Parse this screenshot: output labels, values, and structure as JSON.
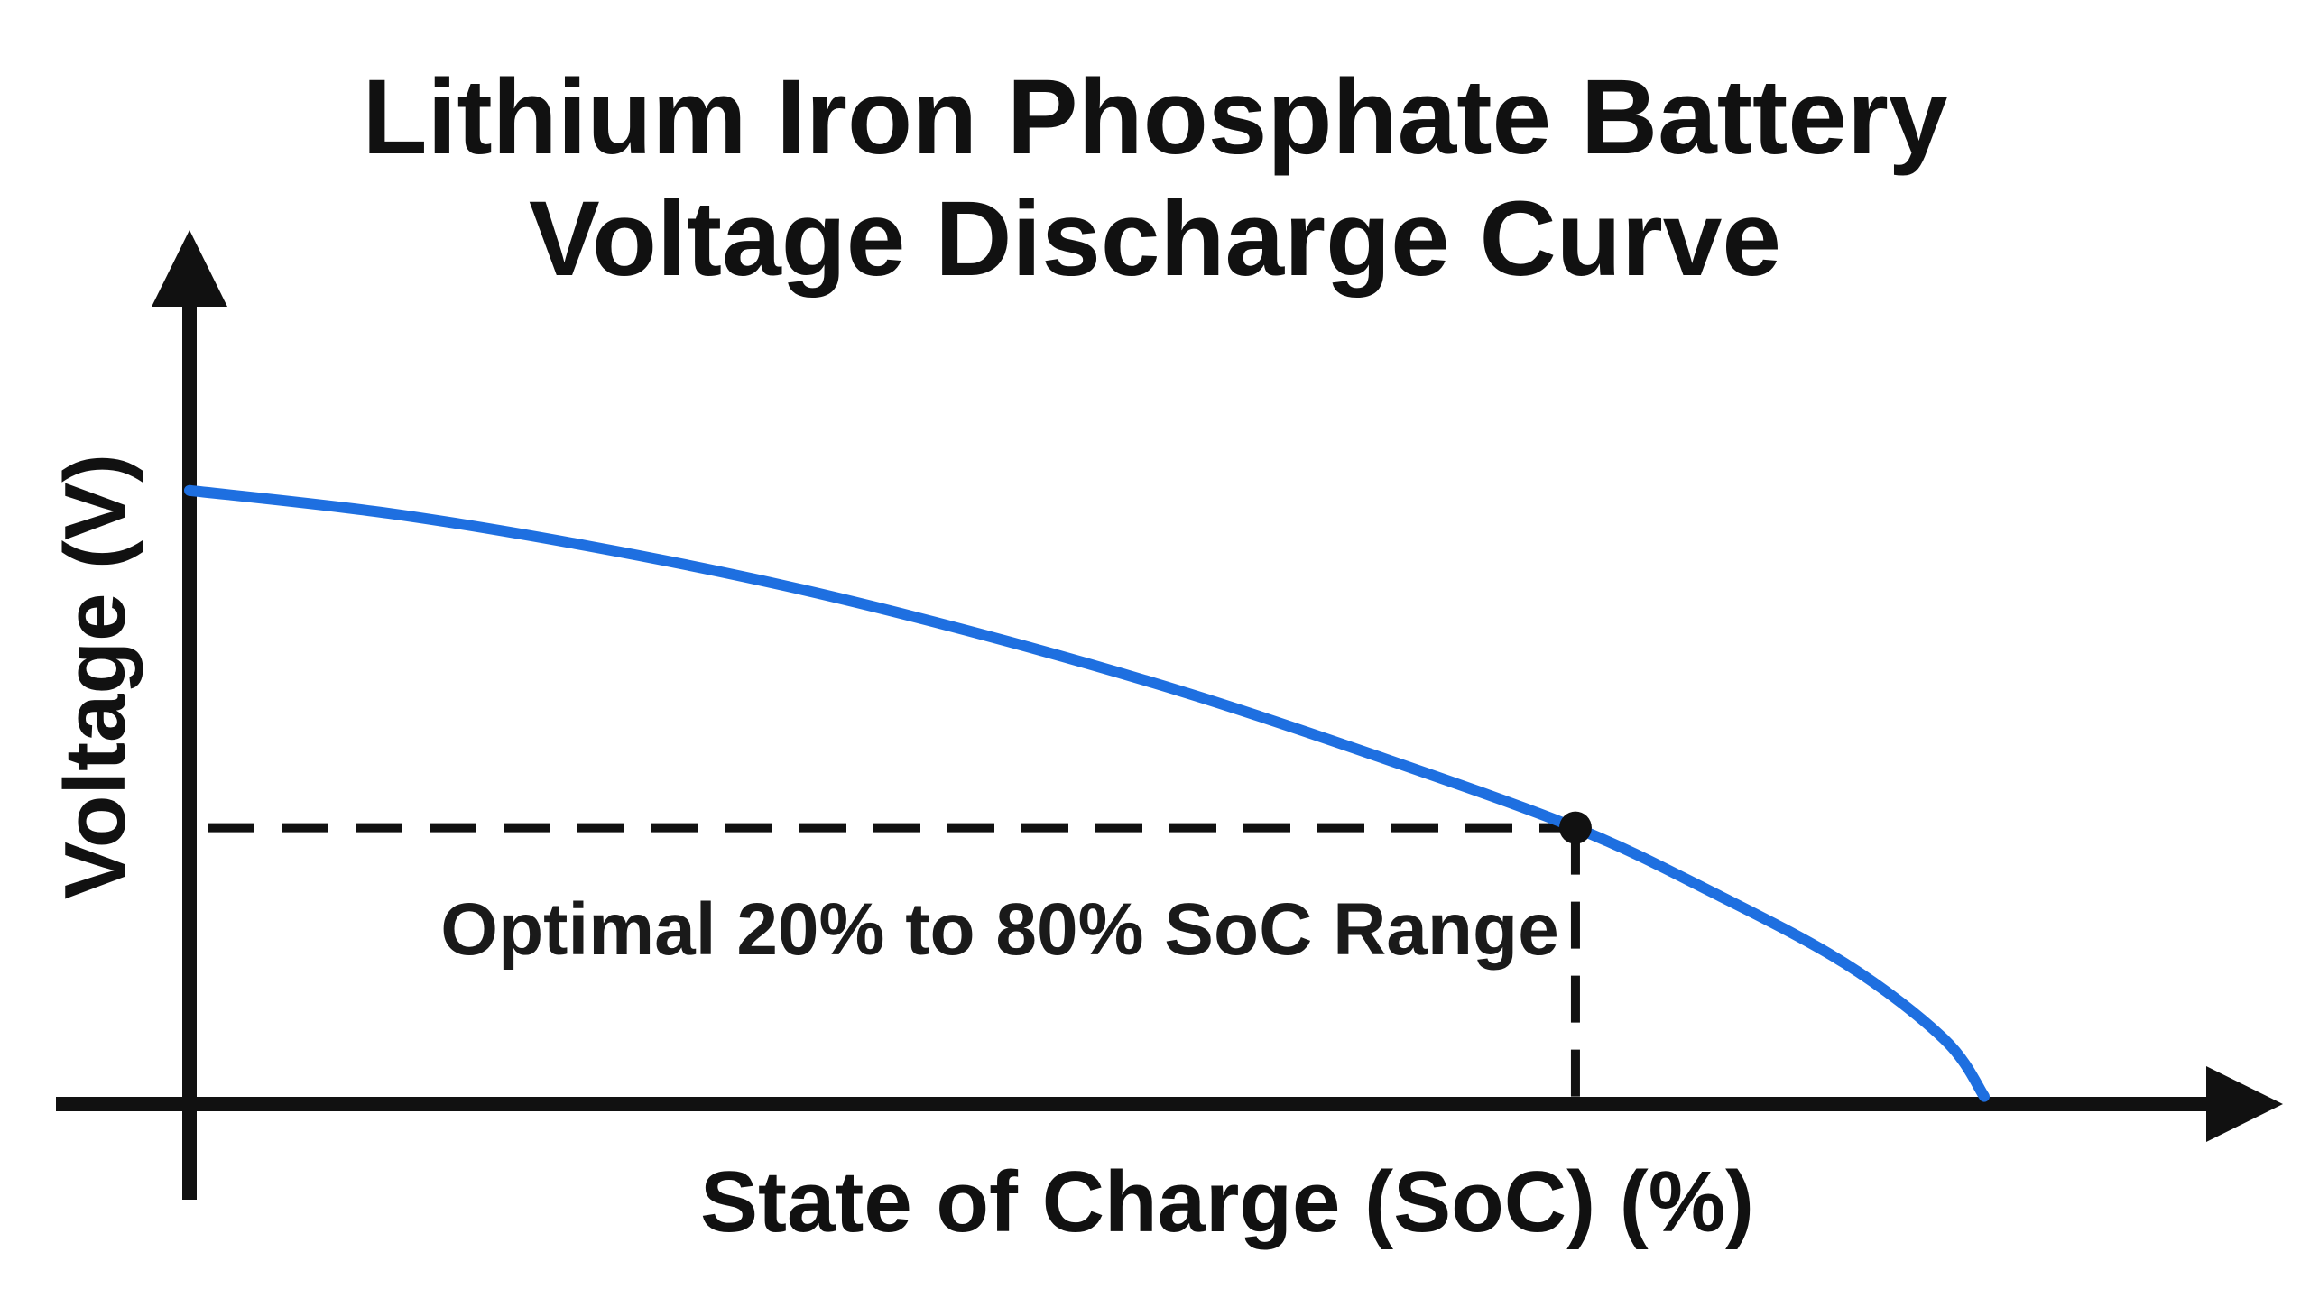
{
  "chart_data": {
    "type": "line",
    "title": [
      "Lithium Iron Phosphate Battery",
      "Voltage Discharge Curve"
    ],
    "xlabel": "State of Charge (SoC) (%)",
    "ylabel": "Voltage (V)",
    "annotation": "Optimal 20% to 80% SoC Range",
    "x_ticks_shown": false,
    "y_ticks_shown": false,
    "grid": false,
    "x_range": [
      0,
      1
    ],
    "y_range": [
      0,
      1
    ],
    "series": [
      {
        "color": "#1e6fe0",
        "points": [
          [
            0.0,
            0.806
          ],
          [
            0.1,
            0.776
          ],
          [
            0.2,
            0.733
          ],
          [
            0.3,
            0.68
          ],
          [
            0.4,
            0.615
          ],
          [
            0.5,
            0.54
          ],
          [
            0.6,
            0.453
          ],
          [
            0.695,
            0.363
          ],
          [
            0.76,
            0.283
          ],
          [
            0.83,
            0.185
          ],
          [
            0.88,
            0.085
          ],
          [
            0.9,
            0.01
          ]
        ]
      }
    ],
    "marker_point": [
      0.695,
      0.363
    ],
    "colors": {
      "line": "#1e6fe0",
      "axes": "#111111",
      "guide": "#111111"
    }
  }
}
